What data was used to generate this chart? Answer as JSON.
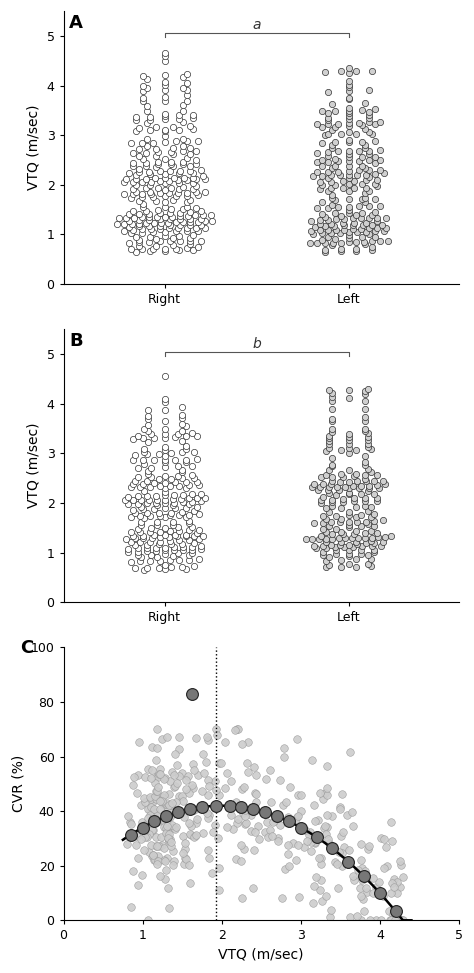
{
  "panel_A_label": "A",
  "panel_B_label": "B",
  "panel_C_label": "C",
  "panel_A_annot": "a",
  "panel_B_annot": "b",
  "ylabel_AB": "VTQ (m/sec)",
  "ylabel_C": "CVR (%)",
  "xlabel_C": "VTQ (m/sec)",
  "ylim_AB": [
    0,
    5.5
  ],
  "yticks_AB": [
    0,
    1,
    2,
    3,
    4,
    5
  ],
  "xlim_C": [
    0,
    5
  ],
  "ylim_C": [
    0,
    100
  ],
  "yticks_C": [
    0,
    20,
    40,
    60,
    80,
    100
  ],
  "xticks_C": [
    0,
    1,
    2,
    3,
    4,
    5
  ],
  "dotted_x": 1.93,
  "bg": "#ffffff",
  "dot_fc_white": "#ffffff",
  "dot_fc_lightgray": "#d0d0d0",
  "dot_ec_dark": "#333333",
  "dot_fc_C_light": "#cccccc",
  "dot_ec_C_light": "#999999",
  "dot_fc_C_dark": "#777777",
  "dot_ec_C_dark": "#222222",
  "bracket_color": "#555555",
  "curve_color": "#000000"
}
